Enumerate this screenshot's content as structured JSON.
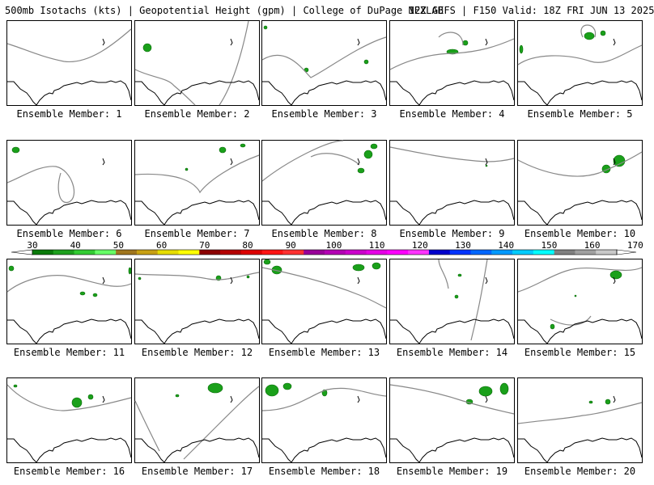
{
  "header": {
    "left": "500mb Isotachs (kts) | Geopotential Height (gpm) | College of DuPage NEXLAB",
    "right": "12Z GEFS | F150 Valid: 18Z FRI JUN 13 2025"
  },
  "panels": [
    {
      "label": "Ensemble Member: 1"
    },
    {
      "label": "Ensemble Member: 2"
    },
    {
      "label": "Ensemble Member: 3"
    },
    {
      "label": "Ensemble Member: 4"
    },
    {
      "label": "Ensemble Member: 5"
    },
    {
      "label": "Ensemble Member: 6"
    },
    {
      "label": "Ensemble Member: 7"
    },
    {
      "label": "Ensemble Member: 8"
    },
    {
      "label": "Ensemble Member: 9"
    },
    {
      "label": "Ensemble Member: 10"
    },
    {
      "label": "Ensemble Member: 11"
    },
    {
      "label": "Ensemble Member: 12"
    },
    {
      "label": "Ensemble Member: 13"
    },
    {
      "label": "Ensemble Member: 14"
    },
    {
      "label": "Ensemble Member: 15"
    },
    {
      "label": "Ensemble Member: 16"
    },
    {
      "label": "Ensemble Member: 17"
    },
    {
      "label": "Ensemble Member: 18"
    },
    {
      "label": "Ensemble Member: 19"
    },
    {
      "label": "Ensemble Member: 20"
    }
  ],
  "colorbar": {
    "labels": [
      "30",
      "40",
      "50",
      "60",
      "70",
      "80",
      "90",
      "100",
      "110",
      "120",
      "130",
      "140",
      "150",
      "160",
      "170"
    ],
    "colors": [
      "#0a7a0a",
      "#1ea01e",
      "#33cc33",
      "#66ff66",
      "#a0761e",
      "#c8a014",
      "#e6dc00",
      "#ffff00",
      "#8b0000",
      "#b40000",
      "#dc0000",
      "#ff1414",
      "#ff3232",
      "#990099",
      "#b400b4",
      "#cc00cc",
      "#e600e6",
      "#ff00ff",
      "#ff33ff",
      "#0000cc",
      "#0033ff",
      "#0066ff",
      "#0099ff",
      "#00ccff",
      "#00ffff",
      "#808080",
      "#a0a0a0",
      "#c8c8c8"
    ]
  },
  "map_colors": {
    "height_contour": "#888888",
    "coast": "#000000",
    "isotach": "#1aa01a"
  }
}
